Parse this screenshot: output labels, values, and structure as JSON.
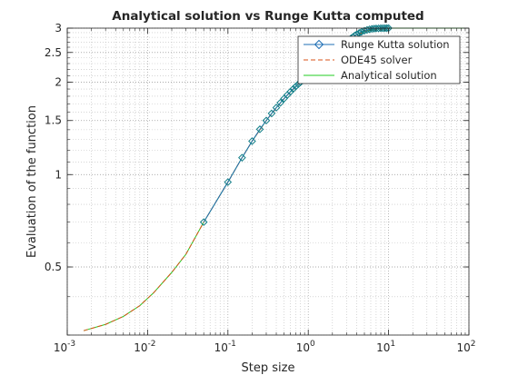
{
  "chart_data": {
    "type": "line",
    "title": "Analytical solution vs Runge Kutta computed",
    "xlabel": "Step size",
    "ylabel": "Evaluation of the function",
    "xscale": "log",
    "yscale": "log",
    "xlim": [
      0.001,
      100
    ],
    "ylim": [
      0.3,
      3
    ],
    "grid": true,
    "minor_grid": true,
    "legend_position": "top-right",
    "x_ticks": [
      {
        "value": 0.001,
        "base": "10",
        "exp": "-3"
      },
      {
        "value": 0.01,
        "base": "10",
        "exp": "-2"
      },
      {
        "value": 0.1,
        "base": "10",
        "exp": "-1"
      },
      {
        "value": 1,
        "base": "10",
        "exp": "0"
      },
      {
        "value": 10,
        "base": "10",
        "exp": "1"
      },
      {
        "value": 100,
        "base": "10",
        "exp": "2"
      }
    ],
    "y_ticks": [
      {
        "value": 0.5,
        "label": "0.5"
      },
      {
        "value": 1,
        "label": "1"
      },
      {
        "value": 1.5,
        "label": "1.5"
      },
      {
        "value": 2,
        "label": "2"
      },
      {
        "value": 2.5,
        "label": "2.5"
      },
      {
        "value": 3,
        "label": "3"
      }
    ],
    "series": [
      {
        "name": "Runge Kutta solution",
        "color": "#1f6fb5",
        "marker_color": "#0e7c86",
        "style": "solid",
        "marker": "diamond",
        "x": [
          0.05,
          0.1,
          0.15,
          0.2,
          0.25,
          0.3,
          0.35,
          0.4,
          0.45,
          0.5,
          0.55,
          0.6,
          0.65,
          0.7,
          0.75,
          0.8,
          0.85,
          0.9,
          0.95,
          1.0,
          1.1,
          1.2,
          1.3,
          1.4,
          1.5,
          1.6,
          1.7,
          1.8,
          1.9,
          2.0,
          2.2,
          2.4,
          2.6,
          2.8,
          3.0,
          3.2,
          3.4,
          3.6,
          3.8,
          4.0,
          4.3,
          4.6,
          5.0,
          5.4,
          5.8,
          6.2,
          6.6,
          7.0,
          7.5,
          8.0,
          8.5,
          9.0,
          9.5,
          10.0
        ],
        "y": [
          0.7,
          0.945,
          1.135,
          1.285,
          1.405,
          1.5,
          1.582,
          1.652,
          1.714,
          1.769,
          1.818,
          1.862,
          1.902,
          1.937,
          1.969,
          1.999,
          2.026,
          2.051,
          2.075,
          2.097,
          2.142,
          2.185,
          2.226,
          2.265,
          2.302,
          2.338,
          2.372,
          2.405,
          2.437,
          2.468,
          2.524,
          2.576,
          2.623,
          2.667,
          2.707,
          2.744,
          2.778,
          2.809,
          2.837,
          2.862,
          2.893,
          2.918,
          2.943,
          2.961,
          2.974,
          2.983,
          2.989,
          2.993,
          2.996,
          2.998,
          2.999,
          2.999,
          3.0,
          3.0
        ]
      },
      {
        "name": "ODE45 solver",
        "color": "#d95319",
        "style": "dashed",
        "marker": "none",
        "x": [
          0.0016,
          0.003,
          0.005,
          0.008,
          0.012,
          0.02,
          0.03,
          0.05,
          0.1,
          0.15,
          0.2,
          0.3,
          0.5,
          0.7,
          1.0,
          1.5,
          2.0,
          3.0,
          5.0,
          10.0
        ],
        "y": [
          0.31,
          0.325,
          0.345,
          0.374,
          0.413,
          0.48,
          0.55,
          0.7,
          0.945,
          1.135,
          1.285,
          1.5,
          1.769,
          1.937,
          2.097,
          2.302,
          2.468,
          2.707,
          2.93,
          3.0
        ]
      },
      {
        "name": "Analytical solution",
        "color": "#22cc22",
        "style": "solid",
        "marker": "none",
        "x": [
          0.0016,
          0.003,
          0.005,
          0.008,
          0.012,
          0.02,
          0.03,
          0.05,
          0.07,
          0.1,
          0.15,
          0.2,
          0.3,
          0.4,
          0.5,
          0.7,
          1.0,
          1.5,
          2.0,
          3.0,
          4.0,
          5.0,
          7.0,
          10.0,
          20.0,
          50.0,
          100.0
        ],
        "y": [
          0.31,
          0.325,
          0.345,
          0.374,
          0.413,
          0.48,
          0.55,
          0.7,
          0.81,
          0.945,
          1.135,
          1.285,
          1.5,
          1.652,
          1.769,
          1.937,
          2.097,
          2.302,
          2.468,
          2.707,
          2.862,
          2.93,
          2.985,
          3.0,
          3.0,
          3.0,
          3.0
        ]
      }
    ]
  }
}
